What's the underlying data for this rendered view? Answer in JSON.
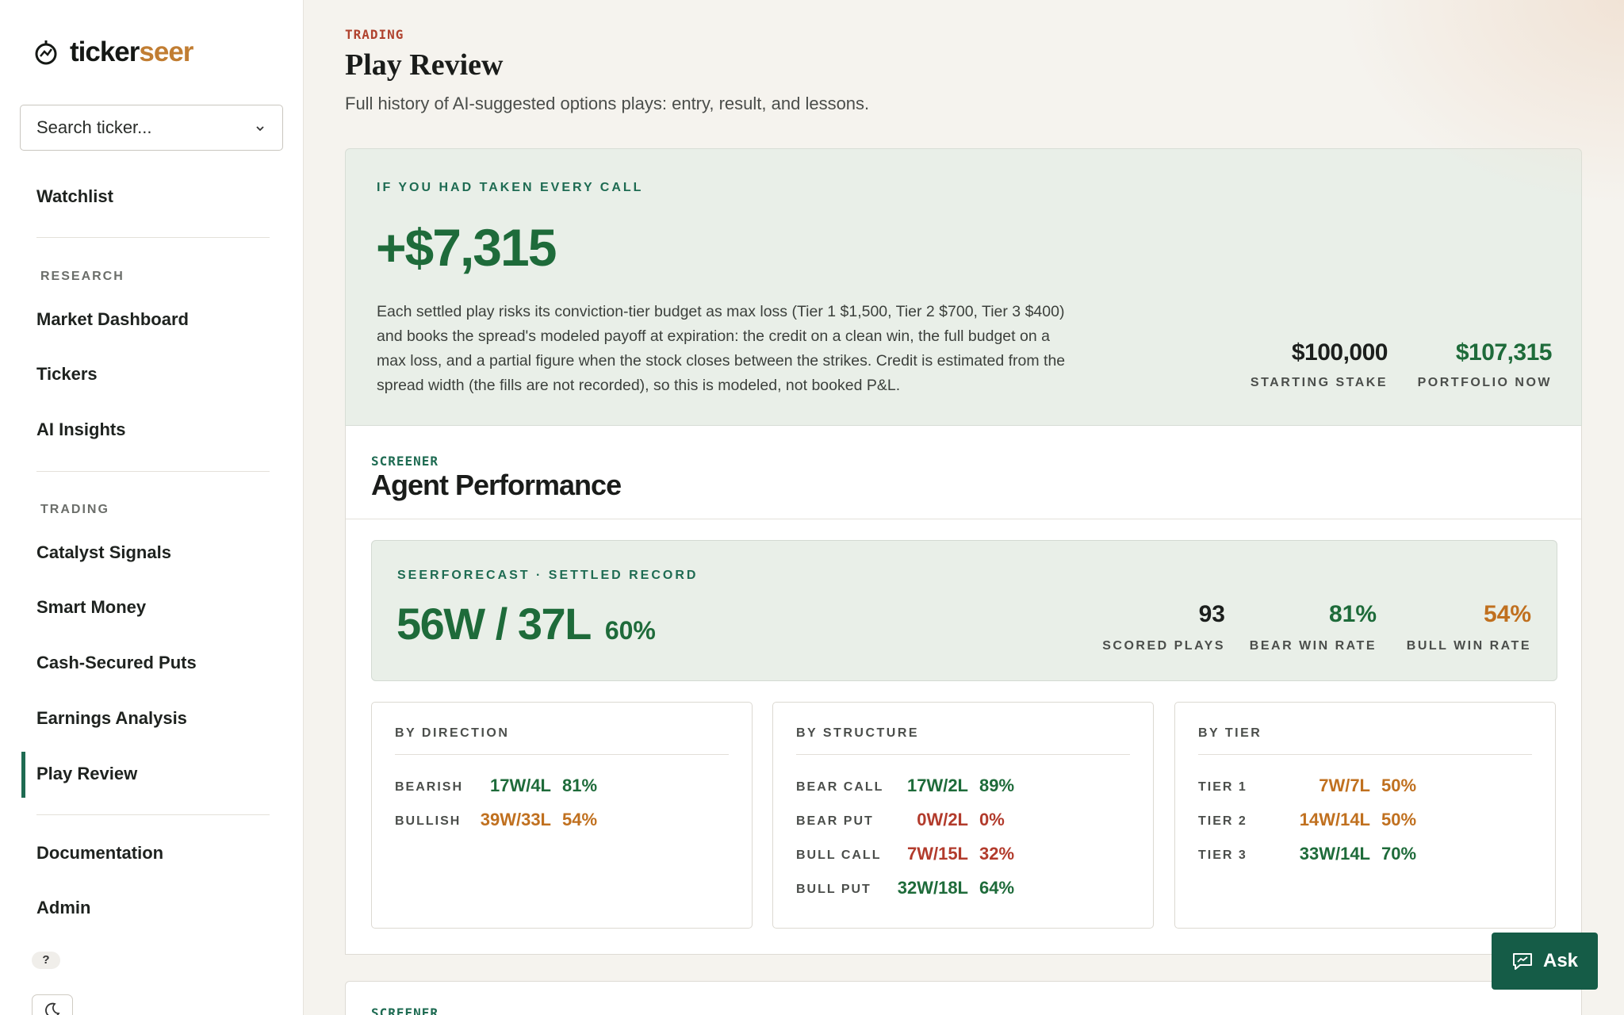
{
  "brand": {
    "name_part1": "ticker",
    "name_part2": "seer"
  },
  "search": {
    "placeholder": "Search ticker..."
  },
  "sidebar": {
    "watchlist": "Watchlist",
    "research_heading": "RESEARCH",
    "research_items": [
      "Market Dashboard",
      "Tickers",
      "AI Insights"
    ],
    "trading_heading": "TRADING",
    "trading_items": [
      "Catalyst Signals",
      "Smart Money",
      "Cash-Secured Puts",
      "Earnings Analysis",
      "Play Review"
    ],
    "active_item": "Play Review",
    "bottom_items": [
      "Documentation",
      "Admin"
    ],
    "help": "?"
  },
  "header": {
    "eyebrow": "TRADING",
    "title": "Play Review",
    "subtitle": "Full history of AI-suggested options plays: entry, result, and lessons."
  },
  "hero": {
    "label": "IF YOU HAD TAKEN EVERY CALL",
    "value": "+$7,315",
    "description": "Each settled play risks its conviction-tier budget as max loss (Tier 1 $1,500, Tier 2 $700, Tier 3 $400) and books the spread's modeled payoff at expiration: the credit on a clean win, the full budget on a max loss, and a partial figure when the stock closes between the strikes. Credit is estimated from the spread width (the fills are not recorded), so this is modeled, not booked P&L.",
    "starting_stake": {
      "value": "$100,000",
      "label": "STARTING STAKE"
    },
    "portfolio_now": {
      "value": "$107,315",
      "label": "PORTFOLIO NOW"
    }
  },
  "agent": {
    "eyebrow": "SCREENER",
    "title": "Agent Performance",
    "record_label": "SEERFORECAST · SETTLED RECORD",
    "record": "56W / 37L",
    "record_pct": "60%",
    "scored_plays": {
      "value": "93",
      "label": "SCORED PLAYS"
    },
    "bear_win_rate": {
      "value": "81%",
      "label": "BEAR WIN RATE"
    },
    "bull_win_rate": {
      "value": "54%",
      "label": "BULL WIN RATE"
    }
  },
  "panels": {
    "direction": {
      "title": "BY DIRECTION",
      "rows": [
        {
          "label": "BEARISH",
          "wl": "17W/4L",
          "pct": "81%"
        },
        {
          "label": "BULLISH",
          "wl": "39W/33L",
          "pct": "54%"
        }
      ]
    },
    "structure": {
      "title": "BY STRUCTURE",
      "rows": [
        {
          "label": "BEAR CALL",
          "wl": "17W/2L",
          "pct": "89%"
        },
        {
          "label": "BEAR PUT",
          "wl": "0W/2L",
          "pct": "0%"
        },
        {
          "label": "BULL CALL",
          "wl": "7W/15L",
          "pct": "32%"
        },
        {
          "label": "BULL PUT",
          "wl": "32W/18L",
          "pct": "64%"
        }
      ]
    },
    "tier": {
      "title": "BY TIER",
      "rows": [
        {
          "label": "TIER 1",
          "wl": "7W/7L",
          "pct": "50%"
        },
        {
          "label": "TIER 2",
          "wl": "14W/14L",
          "pct": "50%"
        },
        {
          "label": "TIER 3",
          "wl": "33W/14L",
          "pct": "70%"
        }
      ]
    }
  },
  "next_section": {
    "eyebrow": "SCREENER"
  },
  "ask_button": {
    "label": "Ask",
    "icon": "chat-icon"
  },
  "colors": {
    "accent": "#1e6b52",
    "win": "#1e6b3a",
    "mixed": "#c0701f",
    "loss": "#b23b2c",
    "brand_orange": "#c17d32"
  }
}
